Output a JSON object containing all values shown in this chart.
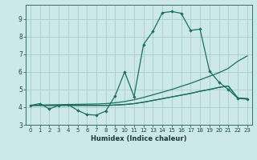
{
  "xlabel": "Humidex (Indice chaleur)",
  "xlim": [
    -0.5,
    23.5
  ],
  "ylim": [
    3.0,
    9.8
  ],
  "yticks": [
    3,
    4,
    5,
    6,
    7,
    8,
    9
  ],
  "xticks": [
    0,
    1,
    2,
    3,
    4,
    5,
    6,
    7,
    8,
    9,
    10,
    11,
    12,
    13,
    14,
    15,
    16,
    17,
    18,
    19,
    20,
    21,
    22,
    23
  ],
  "background_color": "#cce8e8",
  "grid_color": "#aacccc",
  "line_color": "#1a7060",
  "series_main": [
    4.1,
    4.2,
    3.9,
    4.1,
    4.15,
    3.82,
    3.58,
    3.55,
    3.78,
    4.65,
    6.0,
    4.6,
    7.55,
    8.3,
    9.35,
    9.42,
    9.32,
    8.35,
    8.42,
    6.05,
    5.42,
    5.0,
    4.5,
    4.45
  ],
  "series_line1": [
    4.1,
    4.12,
    4.13,
    4.14,
    4.15,
    4.16,
    4.17,
    4.18,
    4.2,
    4.25,
    4.32,
    4.42,
    4.55,
    4.7,
    4.85,
    5.0,
    5.18,
    5.35,
    5.55,
    5.75,
    5.95,
    6.2,
    6.6,
    6.9
  ],
  "series_line2": [
    4.1,
    4.1,
    4.1,
    4.1,
    4.1,
    4.1,
    4.1,
    4.1,
    4.1,
    4.12,
    4.15,
    4.2,
    4.28,
    4.38,
    4.48,
    4.58,
    4.68,
    4.78,
    4.9,
    5.0,
    5.12,
    5.2,
    4.52,
    4.48
  ],
  "series_line3": [
    4.1,
    4.1,
    4.1,
    4.1,
    4.1,
    4.1,
    4.1,
    4.1,
    4.1,
    4.12,
    4.15,
    4.2,
    4.28,
    4.38,
    4.48,
    4.58,
    4.68,
    4.78,
    4.9,
    5.0,
    5.12,
    5.2,
    4.52,
    4.48
  ]
}
